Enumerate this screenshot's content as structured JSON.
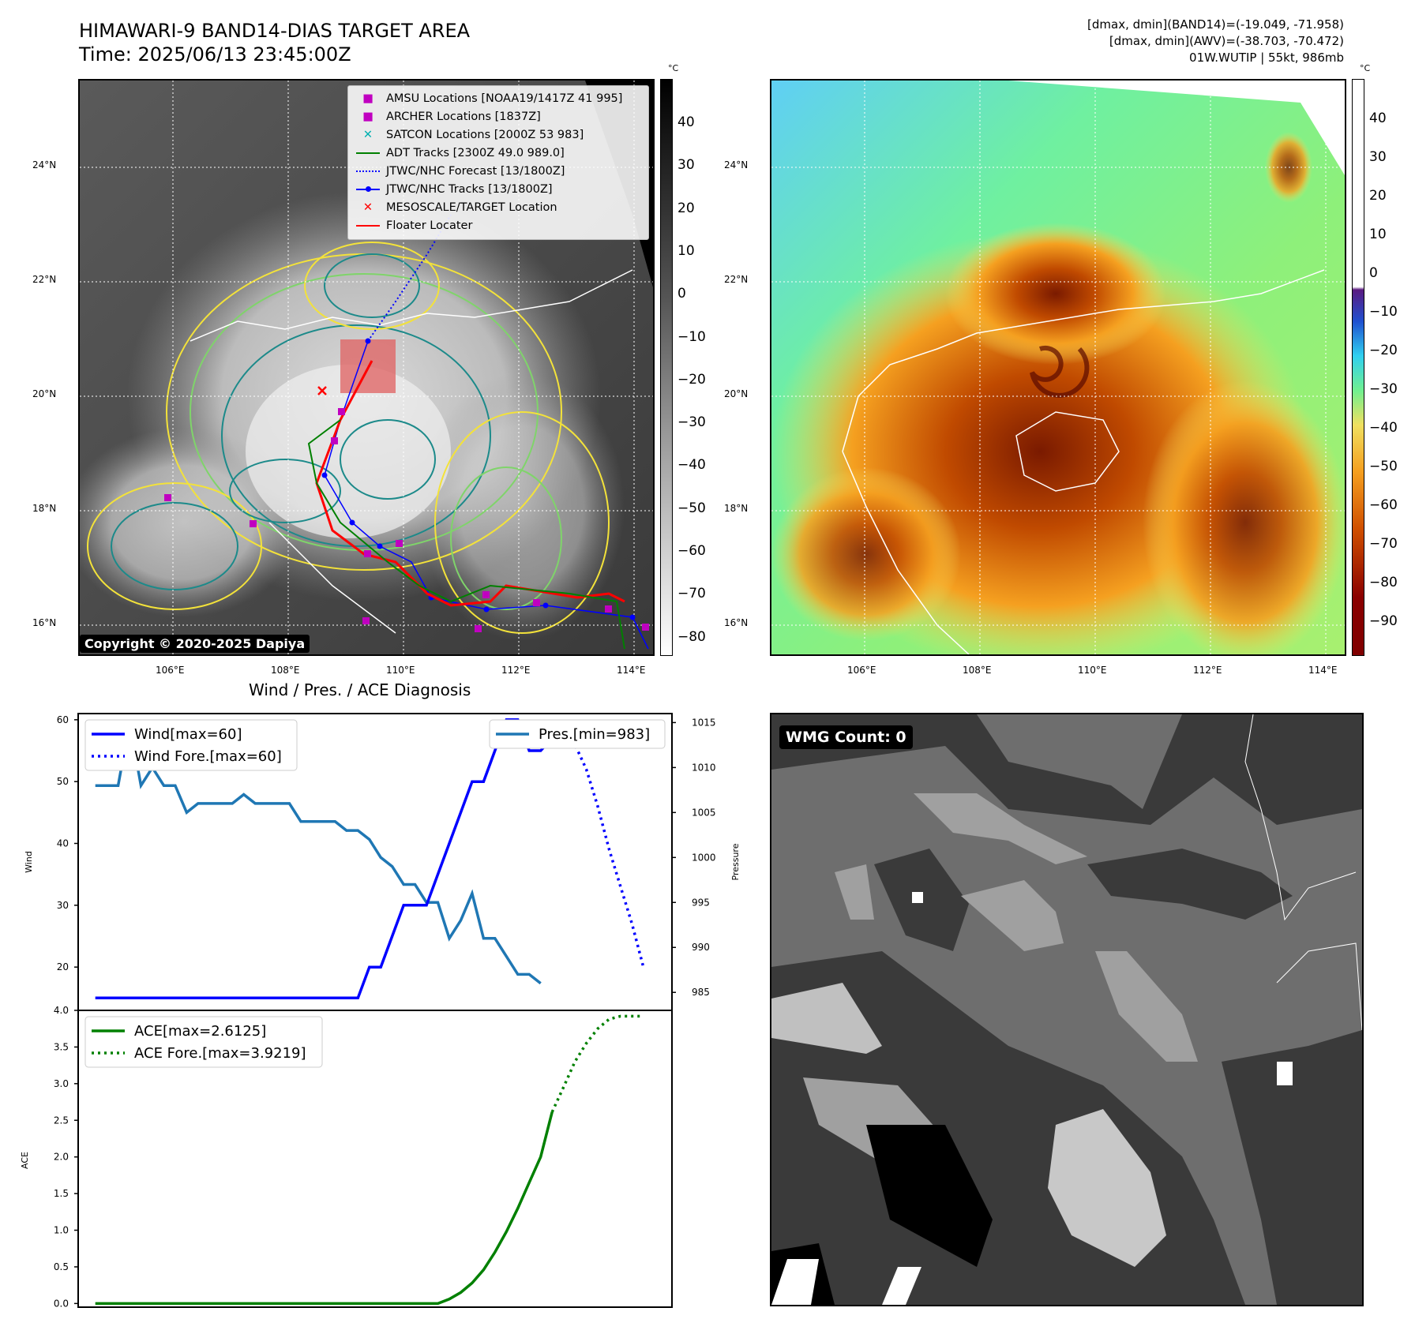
{
  "header": {
    "title": "HIMAWARI-9 BAND14-DIAS TARGET AREA",
    "time": "Time: 2025/06/13 23:45:00Z",
    "info_line1": "[dmax, dmin](BAND14)=(-19.049, -71.958)",
    "info_line2": "[dmax, dmin](AWV)=(-38.703, -70.472)",
    "info_line3": "01W.WUTIP | 55kt, 986mb"
  },
  "map": {
    "lat_labels": [
      "24°N",
      "22°N",
      "20°N",
      "18°N",
      "16°N"
    ],
    "lon_labels": [
      "106°E",
      "108°E",
      "110°E",
      "112°E",
      "114°E"
    ],
    "copyright": "Copyright © 2020-2025 Dapiya",
    "legend": [
      {
        "label": "AMSU Locations [NOAA19/1417Z 41 995]",
        "color": "#c000c0",
        "marker": "square"
      },
      {
        "label": "ARCHER Locations [1837Z]",
        "color": "#c000c0",
        "marker": "square"
      },
      {
        "label": "SATCON Locations [2000Z 53 983]",
        "color": "#00b0b0",
        "marker": "x"
      },
      {
        "label": "ADT Tracks [2300Z 49.0 989.0]",
        "color": "#008000",
        "marker": "line"
      },
      {
        "label": "JTWC/NHC Forecast [13/1800Z]",
        "color": "#0000ff",
        "marker": "dotted"
      },
      {
        "label": "JTWC/NHC Tracks [13/1800Z]",
        "color": "#0000ff",
        "marker": "line-dot"
      },
      {
        "label": "MESOSCALE/TARGET Location",
        "color": "#ff0000",
        "marker": "x"
      },
      {
        "label": "Floater Locater",
        "color": "#ff0000",
        "marker": "line"
      }
    ]
  },
  "colorbar_gray": {
    "unit": "°C",
    "ticks": [
      "40",
      "30",
      "20",
      "10",
      "0",
      "−10",
      "−20",
      "−30",
      "−40",
      "−50",
      "−60",
      "−70",
      "−80"
    ]
  },
  "colorbar_color": {
    "unit": "°C",
    "ticks": [
      "40",
      "30",
      "20",
      "10",
      "0",
      "−10",
      "−20",
      "−30",
      "−40",
      "−50",
      "−60",
      "−70",
      "−80",
      "−90"
    ]
  },
  "diagnosis": {
    "title": "Wind / Pres. / ACE Diagnosis",
    "wind_axis_label": "Wind",
    "pressure_axis_label": "Pressure",
    "ace_axis_label": "ACE",
    "wind_ticks": [
      "60",
      "50",
      "40",
      "30",
      "20"
    ],
    "pressure_ticks": [
      "1015",
      "1010",
      "1005",
      "1000",
      "995",
      "990",
      "985"
    ],
    "ace_ticks": [
      "4.0",
      "3.5",
      "3.0",
      "2.5",
      "2.0",
      "1.5",
      "1.0",
      "0.5",
      "0.0"
    ],
    "legend_wind": "Wind[max=60]",
    "legend_wind_fore": "Wind Fore.[max=60]",
    "legend_pres": "Pres.[min=983]",
    "legend_ace": "ACE[max=2.6125]",
    "legend_ace_fore": "ACE Fore.[max=3.9219]"
  },
  "wmg": {
    "label": "WMG Count: 0"
  },
  "chart_data": [
    {
      "type": "line",
      "title": "Wind / Pres. / ACE Diagnosis",
      "ylabel": "Wind",
      "ylim": [
        13,
        61
      ],
      "series": [
        {
          "name": "Wind[max=60]",
          "color": "#0000ff",
          "style": "solid",
          "x": [
            0,
            1,
            2,
            3,
            4,
            5,
            6,
            7,
            8,
            9,
            10,
            11,
            12,
            13,
            14,
            15,
            16,
            17,
            18,
            19,
            20,
            21,
            22,
            23,
            24,
            25,
            26,
            27,
            28,
            29,
            30,
            31,
            32,
            33,
            34,
            35,
            36,
            37,
            38,
            39,
            40
          ],
          "values": [
            15,
            15,
            15,
            15,
            15,
            15,
            15,
            15,
            15,
            15,
            15,
            15,
            15,
            15,
            15,
            15,
            15,
            15,
            15,
            15,
            15,
            15,
            15,
            15,
            20,
            20,
            25,
            30,
            30,
            30,
            35,
            40,
            45,
            50,
            50,
            55,
            60,
            60,
            55,
            55,
            57
          ]
        },
        {
          "name": "Wind Fore.[max=60]",
          "color": "#0000ff",
          "style": "dotted",
          "x": [
            40,
            41,
            42,
            43,
            44,
            45,
            46,
            47,
            48
          ],
          "values": [
            57,
            58,
            56,
            52,
            46,
            39,
            33,
            27,
            20
          ]
        }
      ]
    },
    {
      "type": "line",
      "ylabel": "Pressure",
      "ylim": [
        983,
        1016
      ],
      "series": [
        {
          "name": "Pres.[min=983]",
          "color": "#1f77b4",
          "style": "solid",
          "x": [
            0,
            1,
            2,
            3,
            4,
            5,
            6,
            7,
            8,
            9,
            10,
            11,
            12,
            13,
            14,
            15,
            16,
            17,
            18,
            19,
            20,
            21,
            22,
            23,
            24,
            25,
            26,
            27,
            28,
            29,
            30,
            31,
            32,
            33,
            34,
            35,
            36,
            37,
            38,
            39
          ],
          "values": [
            1008,
            1008,
            1008,
            1015,
            1008,
            1010,
            1008,
            1008,
            1005,
            1006,
            1006,
            1006,
            1006,
            1007,
            1006,
            1006,
            1006,
            1006,
            1004,
            1004,
            1004,
            1004,
            1003,
            1003,
            1002,
            1000,
            999,
            997,
            997,
            995,
            995,
            991,
            993,
            996,
            991,
            991,
            989,
            987,
            987,
            986
          ]
        }
      ]
    },
    {
      "type": "line",
      "ylabel": "ACE",
      "ylim": [
        -0.05,
        4.0
      ],
      "series": [
        {
          "name": "ACE[max=2.6125]",
          "color": "#008000",
          "style": "solid",
          "x": [
            0,
            5,
            10,
            15,
            20,
            25,
            30,
            31,
            32,
            33,
            34,
            35,
            36,
            37,
            38,
            39,
            40
          ],
          "values": [
            0,
            0,
            0,
            0,
            0,
            0,
            0,
            0.06,
            0.15,
            0.28,
            0.46,
            0.7,
            0.98,
            1.3,
            1.65,
            2.0,
            2.6125
          ]
        },
        {
          "name": "ACE Fore.[max=3.9219]",
          "color": "#008000",
          "style": "dotted",
          "x": [
            40,
            41,
            42,
            43,
            44,
            45,
            46,
            47,
            48
          ],
          "values": [
            2.6125,
            2.95,
            3.3,
            3.55,
            3.75,
            3.88,
            3.92,
            3.92,
            3.92
          ]
        }
      ]
    }
  ]
}
